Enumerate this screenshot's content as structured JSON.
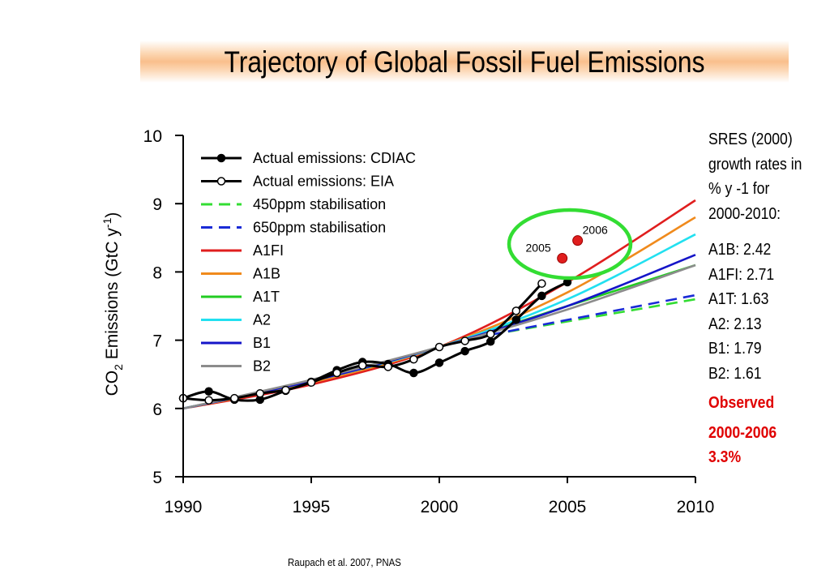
{
  "title": "Trajectory of Global Fossil Fuel Emissions",
  "source": "Raupach et al. 2007, PNAS",
  "sres_panel": {
    "lines": [
      "SRES (2000)",
      "growth rates in",
      "% y -1 for",
      "2000-2010:"
    ],
    "rates": [
      "A1B: 2.42",
      "A1FI: 2.71",
      "A1T: 1.63",
      "A2: 2.13",
      "B1: 1.79",
      "B2: 1.61"
    ],
    "observed_label": "Observed",
    "observed_period": "2000-2006",
    "observed_rate": "3.3%"
  },
  "chart_data": {
    "type": "line",
    "title": "",
    "xlabel": "",
    "ylabel": "CO2 Emissions (GtC y-1)",
    "xlim": [
      1990,
      2010
    ],
    "ylim": [
      5,
      10
    ],
    "xticks": [
      1990,
      1995,
      2000,
      2005,
      2010
    ],
    "yticks": [
      5,
      6,
      7,
      8,
      9,
      10
    ],
    "legend_position": "top-left",
    "series": [
      {
        "name": "Actual emissions: CDIAC",
        "color": "#000000",
        "style": "solid-filled-marker",
        "x": [
          1990,
          1991,
          1992,
          1993,
          1994,
          1995,
          1996,
          1997,
          1998,
          1999,
          2000,
          2001,
          2002,
          2003,
          2004,
          2005
        ],
        "y": [
          6.15,
          6.25,
          6.13,
          6.13,
          6.26,
          6.39,
          6.56,
          6.68,
          6.65,
          6.52,
          6.67,
          6.84,
          6.98,
          7.3,
          7.65,
          7.85
        ]
      },
      {
        "name": "Actual emissions: EIA",
        "color": "#000000",
        "style": "solid-open-marker",
        "x": [
          1990,
          1991,
          1992,
          1993,
          1994,
          1995,
          1996,
          1997,
          1998,
          1999,
          2000,
          2001,
          2002,
          2003,
          2004
        ],
        "y": [
          6.15,
          6.12,
          6.15,
          6.22,
          6.27,
          6.38,
          6.52,
          6.63,
          6.61,
          6.72,
          6.9,
          6.99,
          7.09,
          7.43,
          7.83
        ]
      },
      {
        "name": "450ppm stabilisation",
        "color": "#33dd33",
        "style": "dashed",
        "x": [
          2002,
          2010
        ],
        "y": [
          7.08,
          7.6
        ]
      },
      {
        "name": "650ppm stabilisation",
        "color": "#1a2bd6",
        "style": "dashed",
        "x": [
          2002,
          2010
        ],
        "y": [
          7.08,
          7.66
        ]
      },
      {
        "name": "A1FI",
        "color": "#e01e1e",
        "style": "solid",
        "x": [
          1990,
          1995,
          2000,
          2005,
          2010
        ],
        "y": [
          6.0,
          6.35,
          6.9,
          7.85,
          9.05
        ]
      },
      {
        "name": "A1B",
        "color": "#f08a1c",
        "style": "solid",
        "x": [
          1990,
          1995,
          2000,
          2005,
          2010
        ],
        "y": [
          6.0,
          6.38,
          6.9,
          7.7,
          8.8
        ]
      },
      {
        "name": "A1T",
        "color": "#22cc22",
        "style": "solid",
        "x": [
          1990,
          1995,
          2000,
          2005,
          2010
        ],
        "y": [
          6.0,
          6.4,
          6.9,
          7.5,
          8.1
        ]
      },
      {
        "name": "A2",
        "color": "#22e0f0",
        "style": "solid",
        "x": [
          1990,
          1995,
          2000,
          2005,
          2010
        ],
        "y": [
          6.0,
          6.4,
          6.9,
          7.6,
          8.55
        ]
      },
      {
        "name": "B1",
        "color": "#1515c8",
        "style": "solid",
        "x": [
          1990,
          1995,
          2000,
          2005,
          2010
        ],
        "y": [
          6.0,
          6.4,
          6.9,
          7.5,
          8.25
        ]
      },
      {
        "name": "B2",
        "color": "#8c8c8c",
        "style": "solid",
        "x": [
          1990,
          1995,
          2000,
          2005,
          2010
        ],
        "y": [
          6.0,
          6.42,
          6.9,
          7.45,
          8.1
        ]
      }
    ],
    "annotations": [
      {
        "label": "2005",
        "x": 2004.8,
        "y": 8.2
      },
      {
        "label": "2006",
        "x": 2005.4,
        "y": 8.46
      }
    ],
    "highlight": {
      "shape": "ellipse",
      "color": "#33dd33",
      "around": [
        "2005",
        "2006"
      ]
    }
  }
}
